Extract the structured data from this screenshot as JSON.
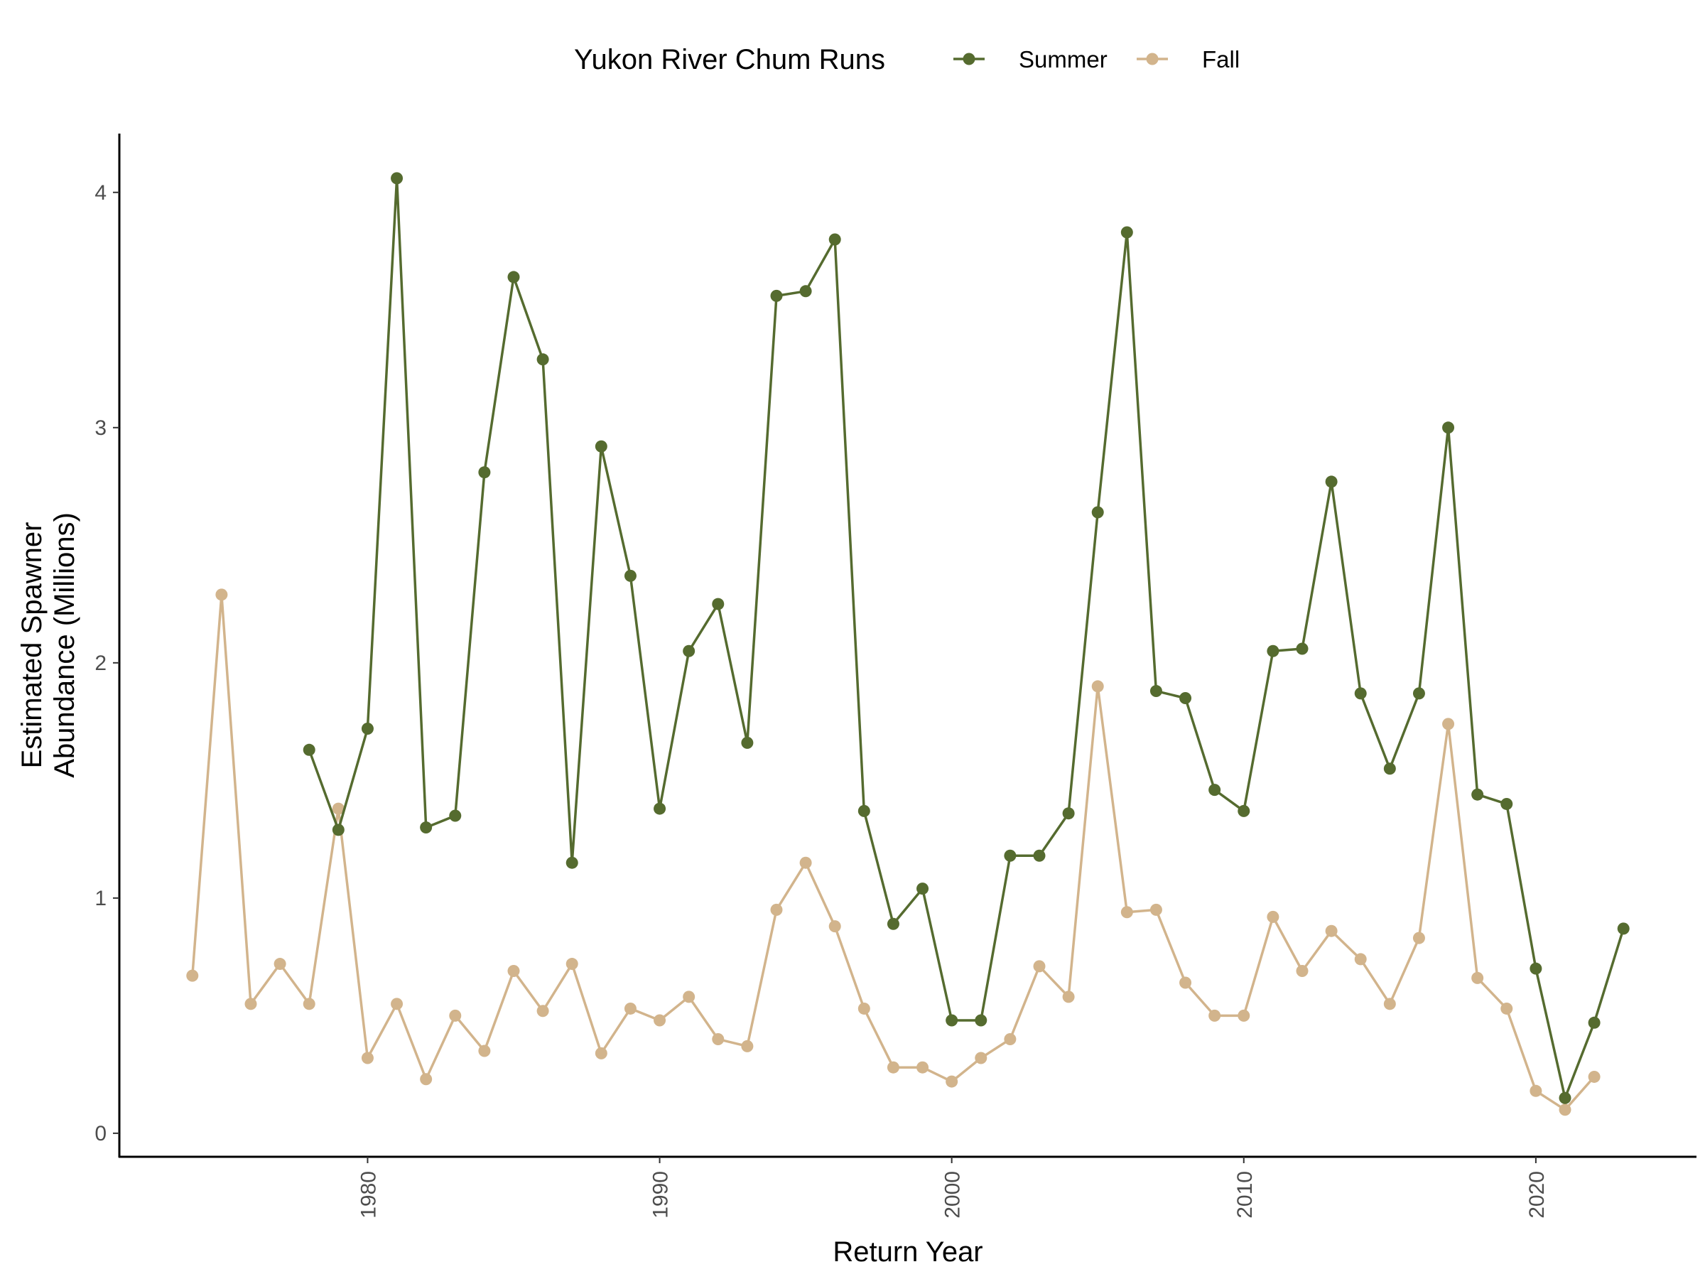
{
  "chart_data": {
    "type": "line",
    "title": "",
    "xlabel": "Return Year",
    "ylabel": [
      "Estimated Spawner",
      "Abundance (Millions)"
    ],
    "xlim": [
      1971.5,
      2025.5
    ],
    "ylim": [
      -0.1,
      4.25
    ],
    "x_ticks": [
      1980,
      1990,
      2000,
      2010,
      2020
    ],
    "y_ticks": [
      0,
      1,
      2,
      3,
      4
    ],
    "grid": false,
    "legend": {
      "title": "Yukon River Chum Runs",
      "position": "top",
      "entries": [
        "Summer",
        "Fall"
      ]
    },
    "colors": {
      "Summer": "#556b2f",
      "Fall": "#d2b48c"
    },
    "series": [
      {
        "name": "Summer",
        "color": "#556b2f",
        "x": [
          1978,
          1979,
          1980,
          1981,
          1982,
          1983,
          1984,
          1985,
          1986,
          1987,
          1988,
          1989,
          1990,
          1991,
          1992,
          1993,
          1994,
          1995,
          1996,
          1997,
          1998,
          1999,
          2000,
          2001,
          2002,
          2003,
          2004,
          2005,
          2006,
          2007,
          2008,
          2009,
          2010,
          2011,
          2012,
          2013,
          2014,
          2015,
          2016,
          2017,
          2018,
          2019,
          2020,
          2021,
          2022,
          2023
        ],
        "values": [
          1.63,
          1.29,
          1.72,
          4.06,
          1.3,
          1.35,
          2.81,
          3.64,
          3.29,
          1.15,
          2.92,
          2.37,
          1.38,
          2.05,
          2.25,
          1.66,
          3.56,
          3.58,
          3.8,
          1.37,
          0.89,
          1.04,
          0.48,
          0.48,
          1.18,
          1.18,
          1.36,
          2.64,
          3.83,
          1.88,
          1.85,
          1.46,
          1.37,
          2.05,
          2.06,
          2.77,
          1.87,
          1.55,
          1.87,
          3.0,
          1.44,
          1.4,
          0.7,
          0.15,
          0.47,
          0.87
        ]
      },
      {
        "name": "Fall",
        "color": "#d2b48c",
        "x": [
          1974,
          1975,
          1976,
          1977,
          1978,
          1979,
          1980,
          1981,
          1982,
          1983,
          1984,
          1985,
          1986,
          1987,
          1988,
          1989,
          1990,
          1991,
          1992,
          1993,
          1994,
          1995,
          1996,
          1997,
          1998,
          1999,
          2000,
          2001,
          2002,
          2003,
          2004,
          2005,
          2006,
          2007,
          2008,
          2009,
          2010,
          2011,
          2012,
          2013,
          2014,
          2015,
          2016,
          2017,
          2018,
          2019,
          2020,
          2021,
          2022
        ],
        "values": [
          0.67,
          2.29,
          0.55,
          0.72,
          0.55,
          1.38,
          0.32,
          0.55,
          0.23,
          0.5,
          0.35,
          0.69,
          0.52,
          0.72,
          0.34,
          0.53,
          0.48,
          0.58,
          0.4,
          0.37,
          0.95,
          1.15,
          0.88,
          0.53,
          0.28,
          0.28,
          0.22,
          0.32,
          0.4,
          0.71,
          0.58,
          1.9,
          0.94,
          0.95,
          0.64,
          0.5,
          0.5,
          0.92,
          0.69,
          0.86,
          0.74,
          0.55,
          0.83,
          1.74,
          0.66,
          0.53,
          0.18,
          0.1,
          0.24
        ]
      }
    ]
  }
}
